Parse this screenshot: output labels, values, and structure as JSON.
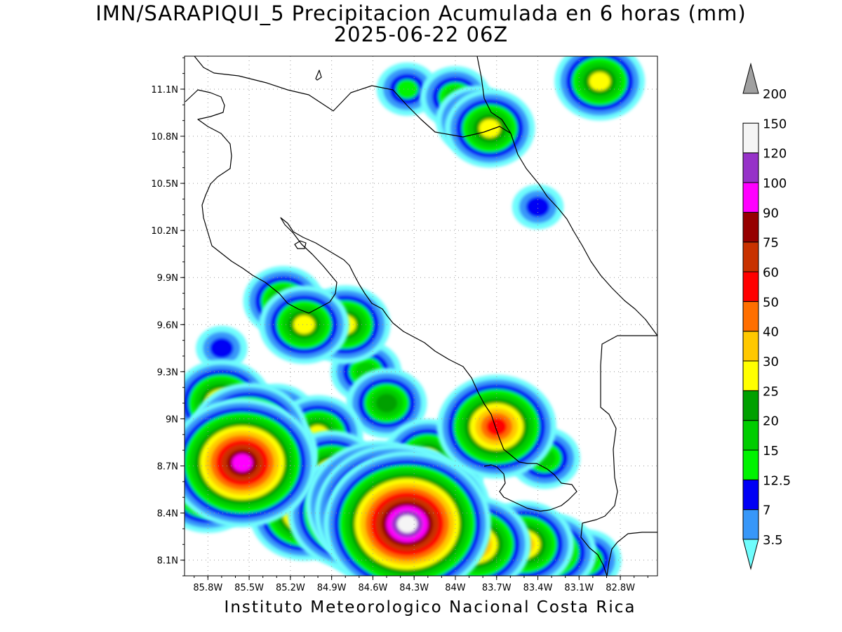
{
  "title": {
    "line1": "IMN/SARAPIQUI_5 Precipitacion Acumulada en 6 horas (mm)",
    "line2": "2025-06-22 06Z"
  },
  "footer": "Instituto Meteorologico Nacional Costa Rica",
  "map": {
    "lon_labels": [
      "85.8W",
      "85.5W",
      "85.2W",
      "84.9W",
      "84.6W",
      "84.3W",
      "84W",
      "83.7W",
      "83.4W",
      "83.1W",
      "82.8W"
    ],
    "lat_labels": [
      "11.1N",
      "10.8N",
      "10.5N",
      "10.2N",
      "9.9N",
      "9.6N",
      "9.3N",
      "9N",
      "8.7N",
      "8.4N",
      "8.1N"
    ],
    "grid": true
  },
  "legend": {
    "bins": [
      {
        "label": "3.5",
        "color": "#6ffdfd"
      },
      {
        "label": "7",
        "color": "#3797f9"
      },
      {
        "label": "12.5",
        "color": "#0000f5"
      },
      {
        "label": "15",
        "color": "#00f300"
      },
      {
        "label": "20",
        "color": "#00cd00"
      },
      {
        "label": "25",
        "color": "#00a000"
      },
      {
        "label": "30",
        "color": "#ffff00"
      },
      {
        "label": "40",
        "color": "#ffc800"
      },
      {
        "label": "50",
        "color": "#ff6f00"
      },
      {
        "label": "60",
        "color": "#ff0000"
      },
      {
        "label": "75",
        "color": "#c83200"
      },
      {
        "label": "90",
        "color": "#960000"
      },
      {
        "label": "100",
        "color": "#ff00ff"
      },
      {
        "label": "120",
        "color": "#9632c8"
      },
      {
        "label": "150",
        "color": "#f5f5f5"
      },
      {
        "label": "200",
        "color": "#a0a0a0"
      }
    ]
  },
  "precip_cells": [
    {
      "lon": -84.45,
      "lat": 8.4,
      "value": 120
    },
    {
      "lon": -84.55,
      "lat": 8.45,
      "value": 100
    },
    {
      "lon": -84.35,
      "lat": 8.33,
      "value": 150
    },
    {
      "lon": -84.75,
      "lat": 8.4,
      "value": 75
    },
    {
      "lon": -84.6,
      "lat": 8.3,
      "value": 60
    },
    {
      "lon": -85.55,
      "lat": 8.72,
      "value": 100
    },
    {
      "lon": -85.5,
      "lat": 8.9,
      "value": 60
    },
    {
      "lon": -85.4,
      "lat": 8.78,
      "value": 50
    },
    {
      "lon": -85.7,
      "lat": 9.1,
      "value": 40
    },
    {
      "lon": -85.8,
      "lat": 8.55,
      "value": 40
    },
    {
      "lon": -85.1,
      "lat": 8.4,
      "value": 50
    },
    {
      "lon": -84.9,
      "lat": 8.65,
      "value": 40
    },
    {
      "lon": -84.3,
      "lat": 8.55,
      "value": 40
    },
    {
      "lon": -84.15,
      "lat": 8.45,
      "value": 50
    },
    {
      "lon": -83.85,
      "lat": 8.2,
      "value": 50
    },
    {
      "lon": -83.7,
      "lat": 8.15,
      "value": 40
    },
    {
      "lon": -83.5,
      "lat": 8.2,
      "value": 40
    },
    {
      "lon": -83.3,
      "lat": 8.15,
      "value": 30
    },
    {
      "lon": -83.05,
      "lat": 8.1,
      "value": 20
    },
    {
      "lon": -83.7,
      "lat": 8.95,
      "value": 60
    },
    {
      "lon": -83.35,
      "lat": 8.75,
      "value": 20
    },
    {
      "lon": -84.8,
      "lat": 9.6,
      "value": 30
    },
    {
      "lon": -85.1,
      "lat": 9.6,
      "value": 30
    },
    {
      "lon": -85.25,
      "lat": 9.75,
      "value": 25
    },
    {
      "lon": -84.65,
      "lat": 9.3,
      "value": 20
    },
    {
      "lon": -84.5,
      "lat": 9.1,
      "value": 25
    },
    {
      "lon": -83.85,
      "lat": 10.9,
      "value": 25
    },
    {
      "lon": -84.0,
      "lat": 11.05,
      "value": 20
    },
    {
      "lon": -83.75,
      "lat": 10.85,
      "value": 30
    },
    {
      "lon": -84.35,
      "lat": 11.1,
      "value": 15
    },
    {
      "lon": -82.95,
      "lat": 11.15,
      "value": 30
    },
    {
      "lon": -83.4,
      "lat": 10.35,
      "value": 12.5
    },
    {
      "lon": -85.7,
      "lat": 9.45,
      "value": 12.5
    },
    {
      "lon": -85.0,
      "lat": 8.9,
      "value": 30
    },
    {
      "lon": -85.3,
      "lat": 9.0,
      "value": 25
    },
    {
      "lon": -84.2,
      "lat": 8.75,
      "value": 30
    },
    {
      "lon": -84.05,
      "lat": 8.65,
      "value": 20
    }
  ]
}
